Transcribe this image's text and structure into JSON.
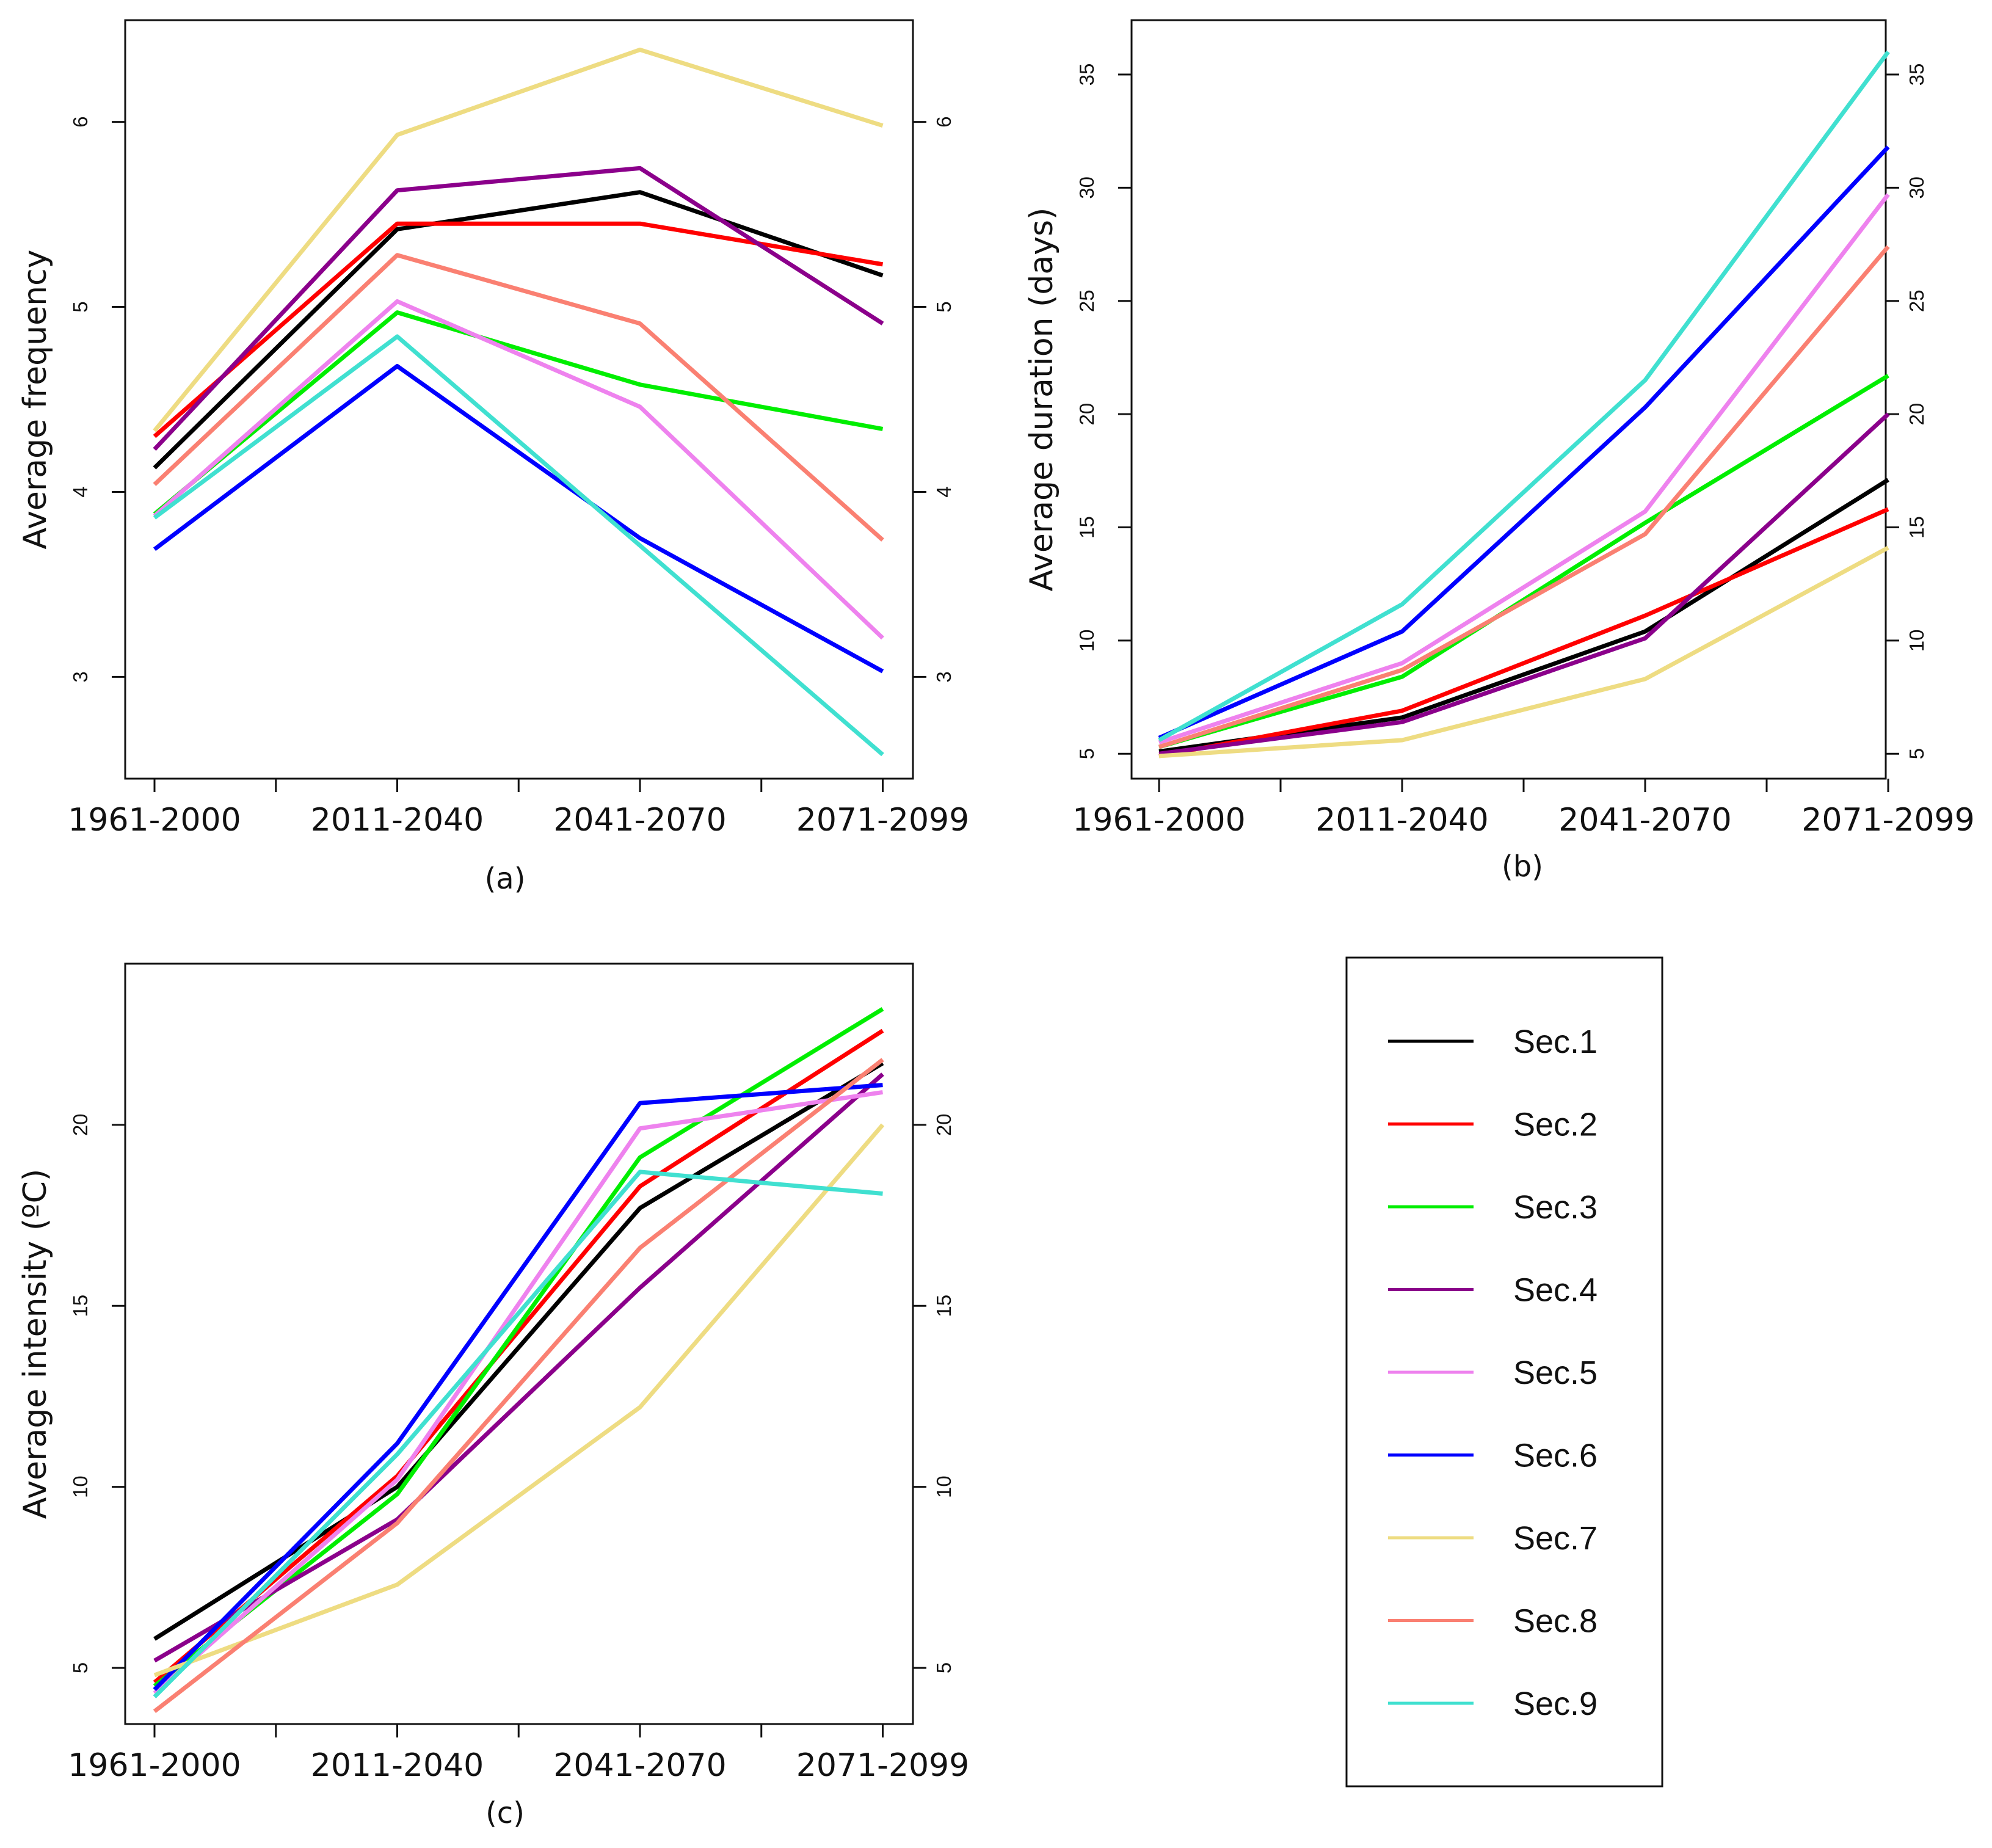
{
  "chart_data": [
    {
      "type": "line",
      "panel": "(a)",
      "caption": "(a)",
      "ylabel": "Average frequency",
      "categories": [
        "1961-2000",
        "2011-2040",
        "2041-2070",
        "2071-2099"
      ],
      "yticks": [
        3,
        4,
        5,
        6
      ],
      "ylim": [
        2.45,
        6.55
      ],
      "grid": false,
      "series": [
        {
          "name": "Sec.1",
          "values": [
            4.13,
            5.42,
            5.62,
            5.17
          ]
        },
        {
          "name": "Sec.2",
          "values": [
            4.3,
            5.45,
            5.45,
            5.23
          ]
        },
        {
          "name": "Sec.3",
          "values": [
            3.88,
            4.97,
            4.58,
            4.34
          ]
        },
        {
          "name": "Sec.4",
          "values": [
            4.23,
            5.63,
            5.75,
            4.91
          ]
        },
        {
          "name": "Sec.5",
          "values": [
            3.87,
            5.03,
            4.46,
            3.21
          ]
        },
        {
          "name": "Sec.6",
          "values": [
            3.69,
            4.68,
            3.75,
            3.03
          ]
        },
        {
          "name": "Sec.7",
          "values": [
            4.33,
            5.93,
            6.39,
            5.98
          ]
        },
        {
          "name": "Sec.8",
          "values": [
            4.04,
            5.28,
            4.91,
            3.74
          ]
        },
        {
          "name": "Sec.9",
          "values": [
            3.86,
            4.84,
            3.71,
            2.58
          ]
        }
      ]
    },
    {
      "type": "line",
      "panel": "(b)",
      "caption": "(b)",
      "ylabel": "Average duration (days)",
      "categories": [
        "1961-2000",
        "2011-2040",
        "2041-2070",
        "2071-2099"
      ],
      "yticks": [
        5,
        10,
        15,
        20,
        25,
        30,
        35
      ],
      "ylim": [
        3.9,
        37.4
      ],
      "grid": false,
      "series": [
        {
          "name": "Sec.1",
          "values": [
            5.1,
            6.6,
            10.4,
            17.1
          ]
        },
        {
          "name": "Sec.2",
          "values": [
            4.9,
            6.9,
            11.1,
            15.8
          ]
        },
        {
          "name": "Sec.3",
          "values": [
            5.3,
            8.4,
            15.2,
            21.7
          ]
        },
        {
          "name": "Sec.4",
          "values": [
            5.0,
            6.4,
            10.1,
            20.0
          ]
        },
        {
          "name": "Sec.5",
          "values": [
            5.5,
            9.0,
            15.7,
            29.7
          ]
        },
        {
          "name": "Sec.6",
          "values": [
            5.7,
            10.4,
            20.3,
            31.8
          ]
        },
        {
          "name": "Sec.7",
          "values": [
            4.9,
            5.6,
            8.3,
            14.1
          ]
        },
        {
          "name": "Sec.8",
          "values": [
            5.3,
            8.7,
            14.7,
            27.4
          ]
        },
        {
          "name": "Sec.9",
          "values": [
            5.6,
            11.6,
            21.5,
            36.0
          ]
        }
      ]
    },
    {
      "type": "line",
      "panel": "(c)",
      "caption": "(c)",
      "ylabel": "Average intensity (ºC)",
      "categories": [
        "1961-2000",
        "2011-2040",
        "2041-2070",
        "2071-2099"
      ],
      "yticks": [
        5,
        10,
        15,
        20
      ],
      "ylim": [
        3.45,
        24.45
      ],
      "grid": false,
      "series": [
        {
          "name": "Sec.1",
          "values": [
            5.8,
            10.0,
            17.7,
            21.7
          ]
        },
        {
          "name": "Sec.2",
          "values": [
            4.6,
            10.3,
            18.3,
            22.6
          ]
        },
        {
          "name": "Sec.3",
          "values": [
            4.5,
            9.8,
            19.1,
            23.2
          ]
        },
        {
          "name": "Sec.4",
          "values": [
            5.2,
            9.1,
            15.5,
            21.4
          ]
        },
        {
          "name": "Sec.5",
          "values": [
            4.3,
            10.2,
            19.9,
            20.9
          ]
        },
        {
          "name": "Sec.6",
          "values": [
            4.4,
            11.2,
            20.6,
            21.1
          ]
        },
        {
          "name": "Sec.7",
          "values": [
            4.8,
            7.3,
            12.2,
            20.0
          ]
        },
        {
          "name": "Sec.8",
          "values": [
            3.8,
            9.0,
            16.6,
            21.8
          ]
        },
        {
          "name": "Sec.9",
          "values": [
            4.2,
            10.9,
            18.7,
            18.1
          ]
        }
      ]
    }
  ],
  "legend": {
    "placement": "bottom-right",
    "entries": [
      {
        "label": "Sec.1",
        "color": "#000000"
      },
      {
        "label": "Sec.2",
        "color": "#ff0000"
      },
      {
        "label": "Sec.3",
        "color": "#00ee00"
      },
      {
        "label": "Sec.4",
        "color": "#8b008b"
      },
      {
        "label": "Sec.5",
        "color": "#ee82ee"
      },
      {
        "label": "Sec.6",
        "color": "#0000ff"
      },
      {
        "label": "Sec.7",
        "color": "#eedc82"
      },
      {
        "label": "Sec.8",
        "color": "#fa8072"
      },
      {
        "label": "Sec.9",
        "color": "#40e0d0"
      }
    ]
  }
}
